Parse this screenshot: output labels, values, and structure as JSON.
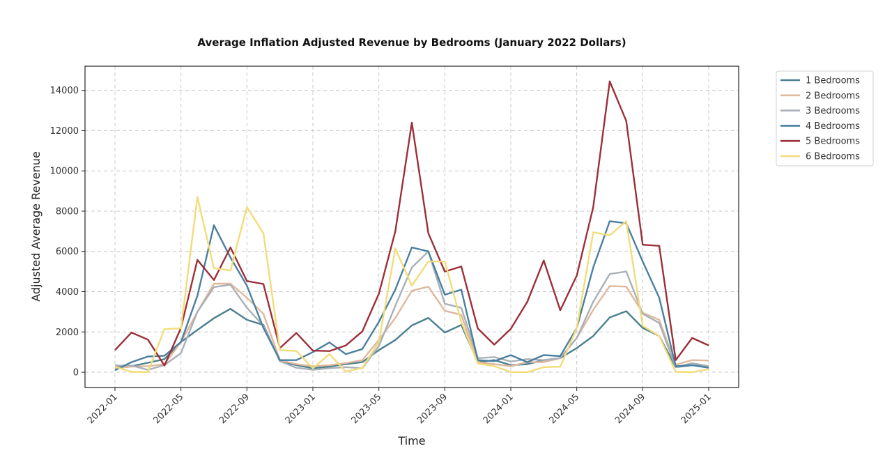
{
  "chart_data": {
    "type": "line",
    "title": "Average Inflation Adjusted Revenue by Bedrooms (January 2022 Dollars)",
    "xlabel": "Time",
    "ylabel": "Adjusted Average Revenue",
    "x": [
      "2022-01",
      "2022-02",
      "2022-03",
      "2022-04",
      "2022-05",
      "2022-06",
      "2022-07",
      "2022-08",
      "2022-09",
      "2022-10",
      "2022-11",
      "2022-12",
      "2023-01",
      "2023-02",
      "2023-03",
      "2023-04",
      "2023-05",
      "2023-06",
      "2023-07",
      "2023-08",
      "2023-09",
      "2023-10",
      "2023-11",
      "2023-12",
      "2024-01",
      "2024-02",
      "2024-03",
      "2024-04",
      "2024-05",
      "2024-06",
      "2024-07",
      "2024-08",
      "2024-09",
      "2024-10",
      "2024-11",
      "2024-12",
      "2025-01"
    ],
    "xticks": [
      "2022-01",
      "2022-05",
      "2022-09",
      "2023-01",
      "2023-05",
      "2023-09",
      "2024-01",
      "2024-05",
      "2024-09",
      "2025-01"
    ],
    "yticks": [
      0,
      2000,
      4000,
      6000,
      8000,
      10000,
      12000,
      14000
    ],
    "ylim": [
      -760,
      15200
    ],
    "grid": true,
    "legend_position": "outside-top-right",
    "series": [
      {
        "name": "1 Bedrooms",
        "color": "#4a8090",
        "values": [
          300,
          300,
          470,
          650,
          1500,
          2100,
          2680,
          3150,
          2600,
          2350,
          550,
          350,
          200,
          280,
          400,
          500,
          1100,
          1600,
          2320,
          2700,
          1970,
          2350,
          500,
          600,
          350,
          400,
          600,
          700,
          1200,
          1800,
          2720,
          3030,
          2200,
          1800,
          250,
          350,
          250
        ]
      },
      {
        "name": "2 Bedrooms",
        "color": "#e0b89c",
        "values": [
          200,
          280,
          300,
          400,
          1500,
          3000,
          4400,
          4400,
          3700,
          2900,
          600,
          400,
          300,
          350,
          450,
          600,
          1600,
          2700,
          4050,
          4250,
          3050,
          2850,
          500,
          400,
          300,
          500,
          500,
          700,
          1700,
          3100,
          4280,
          4250,
          2950,
          2600,
          380,
          600,
          580
        ]
      },
      {
        "name": "3 Bedrooms",
        "color": "#a8b0b8",
        "values": [
          330,
          330,
          120,
          350,
          950,
          3000,
          4230,
          4350,
          3200,
          2300,
          550,
          220,
          120,
          200,
          250,
          200,
          1300,
          3300,
          5200,
          6000,
          3400,
          3200,
          700,
          750,
          530,
          650,
          600,
          700,
          1700,
          3500,
          4880,
          5000,
          2900,
          2450,
          250,
          450,
          300
        ]
      },
      {
        "name": "4 Bedrooms",
        "color": "#4a7fa0",
        "values": [
          100,
          500,
          780,
          820,
          1500,
          3800,
          7300,
          5700,
          4300,
          2200,
          600,
          600,
          1000,
          1480,
          900,
          1150,
          2500,
          4100,
          6200,
          6000,
          3850,
          4100,
          600,
          550,
          850,
          500,
          850,
          800,
          2200,
          5200,
          7500,
          7400,
          5500,
          3700,
          300,
          350,
          220
        ]
      },
      {
        "name": "5 Bedrooms",
        "color": "#9c2f38",
        "values": [
          1100,
          1970,
          1620,
          330,
          2200,
          5580,
          4580,
          6200,
          4530,
          4380,
          1200,
          1950,
          1070,
          1050,
          1330,
          2030,
          3900,
          7000,
          12400,
          6900,
          5000,
          5250,
          2170,
          1370,
          2150,
          3500,
          5550,
          3080,
          4800,
          8200,
          14450,
          12480,
          6330,
          6280,
          600,
          1700,
          1330
        ]
      },
      {
        "name": "6 Bedrooms",
        "color": "#f2dc7a",
        "values": [
          270,
          20,
          10,
          2140,
          2180,
          8700,
          5170,
          5050,
          8200,
          6900,
          1100,
          1050,
          200,
          900,
          30,
          220,
          1500,
          6150,
          4300,
          5500,
          5500,
          2500,
          430,
          300,
          10,
          0,
          250,
          270,
          2200,
          6950,
          6800,
          7500,
          2300,
          1800,
          20,
          0,
          150
        ]
      }
    ]
  }
}
